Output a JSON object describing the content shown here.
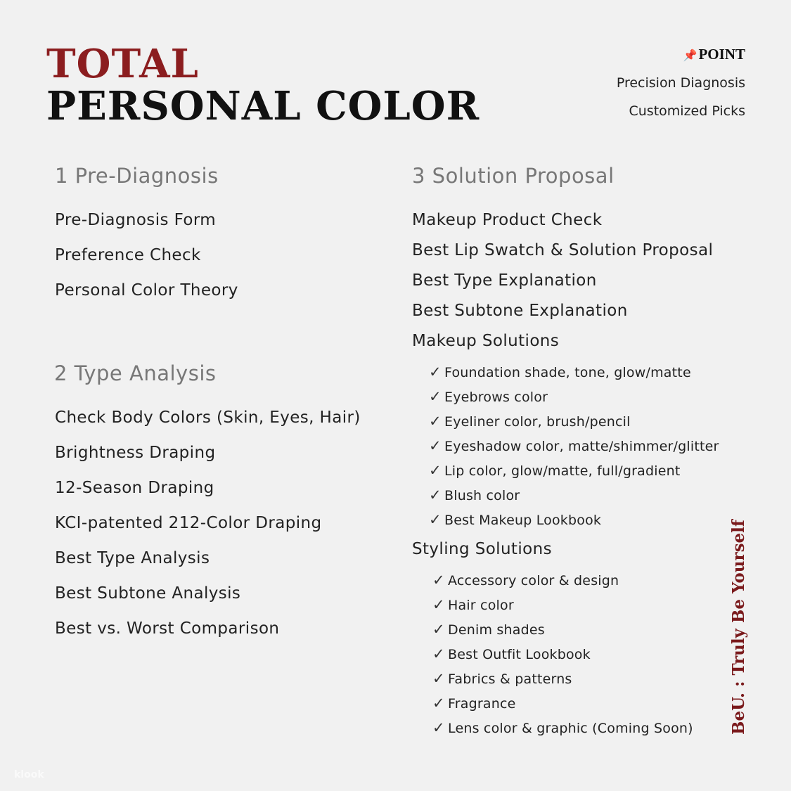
{
  "title": {
    "line1": "TOTAL",
    "line2": "PERSONAL COLOR"
  },
  "point": {
    "label": "POINT",
    "icon": "pushpin-icon",
    "lines": [
      "Precision Diagnosis",
      "Customized Picks"
    ]
  },
  "sections": {
    "pre_diagnosis": {
      "heading": "1 Pre-Diagnosis",
      "items": [
        "Pre-Diagnosis Form",
        "Preference Check",
        "Personal Color Theory"
      ]
    },
    "type_analysis": {
      "heading": "2 Type Analysis",
      "items": [
        "Check Body Colors (Skin, Eyes, Hair)",
        "Brightness Draping",
        "12-Season Draping",
        "KCI-patented 212-Color Draping",
        "Best Type Analysis",
        "Best Subtone Analysis",
        "Best vs. Worst Comparison"
      ]
    },
    "solution": {
      "heading": "3 Solution Proposal",
      "items": [
        "Makeup Product Check",
        "Best Lip Swatch & Solution Proposal",
        "Best Type Explanation",
        "Best Subtone Explanation",
        "Makeup Solutions"
      ],
      "makeup_checks": [
        "Foundation shade, tone, glow/matte",
        "Eyebrows color",
        "Eyeliner color, brush/pencil",
        "Eyeshadow color, matte/shimmer/glitter",
        "Lip color, glow/matte, full/gradient",
        "Blush color",
        "Best Makeup Lookbook"
      ],
      "styling_heading": "Styling Solutions",
      "styling_checks": [
        "Accessory color & design",
        "Hair color",
        "Denim shades",
        "Best Outfit Lookbook",
        "Fabrics & patterns",
        "Fragrance",
        "Lens color & graphic (Coming Soon)"
      ]
    }
  },
  "tagline": "BeU. : Truly Be Yourself",
  "watermark": "klook",
  "colors": {
    "accent": "#8b1d1f",
    "background": "#f1f1f1",
    "heading": "#777777"
  }
}
